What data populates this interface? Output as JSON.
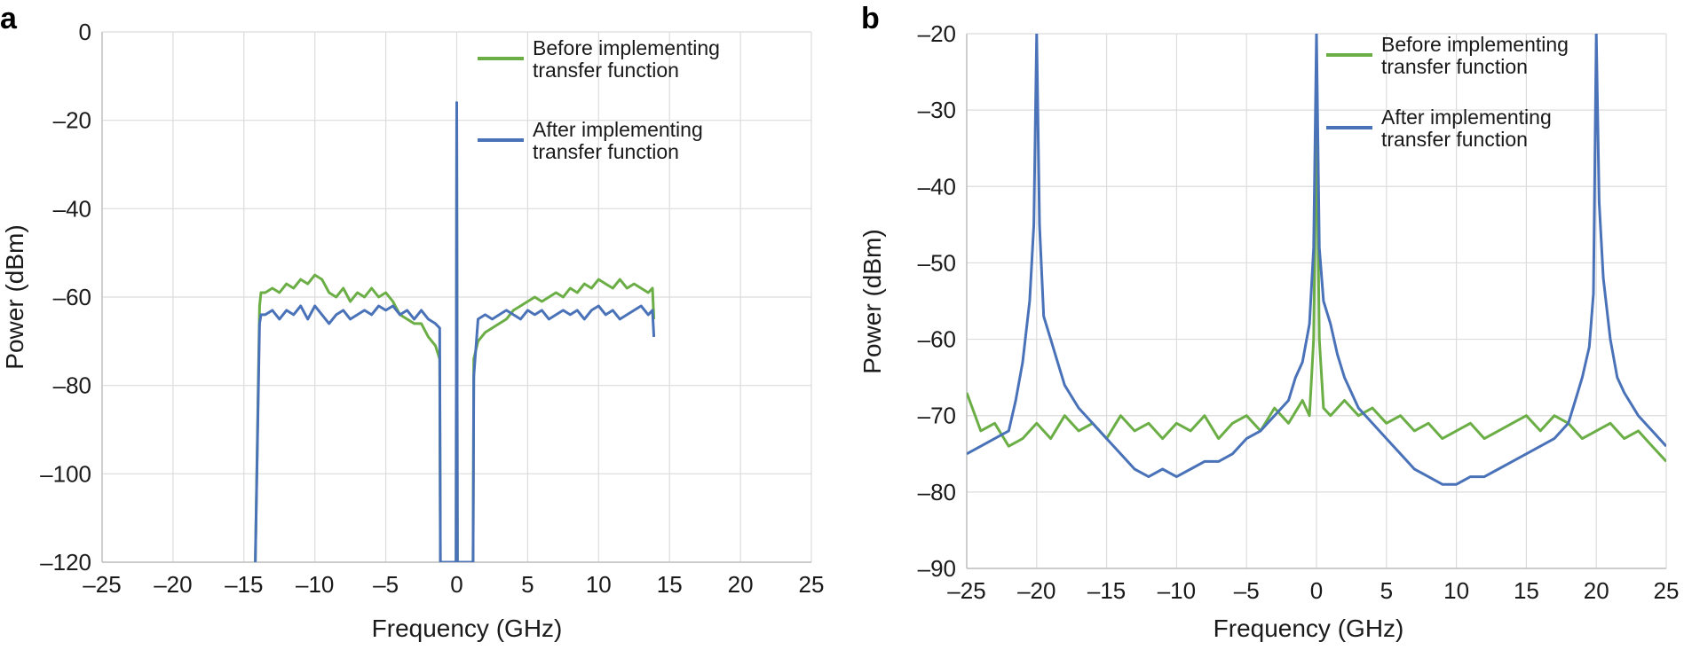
{
  "chart_data": [
    {
      "type": "line",
      "panel": "a",
      "xlabel": "Frequency (GHz)",
      "ylabel": "Power (dBm)",
      "xlim": [
        -25,
        25
      ],
      "ylim": [
        -120,
        0
      ],
      "xticks": [
        -25,
        -20,
        -15,
        -10,
        -5,
        0,
        5,
        10,
        15,
        20,
        25
      ],
      "yticks": [
        0,
        -20,
        -40,
        -60,
        -80,
        -100,
        -120
      ],
      "xtick_labels": [
        "–25",
        "–20",
        "–15",
        "–10",
        "–5",
        "0",
        "5",
        "10",
        "15",
        "20",
        "25"
      ],
      "ytick_labels": [
        "0",
        "–20",
        "–40",
        "–60",
        "–80",
        "–100",
        "–120"
      ],
      "grid": true,
      "legend_position": "top-right",
      "series": [
        {
          "name": "Before implementing transfer function",
          "color": "#6aae45",
          "x": [
            -14.2,
            -13.9,
            -13.8,
            -13.5,
            -13,
            -12.5,
            -12,
            -11.5,
            -11,
            -10.5,
            -10,
            -9.5,
            -9,
            -8.5,
            -8,
            -7.5,
            -7,
            -6.5,
            -6,
            -5.5,
            -5,
            -4.5,
            -4,
            -3.5,
            -3,
            -2.5,
            -2,
            -1.5,
            -1.2,
            -1.15,
            -0.05,
            0,
            0.05,
            1.15,
            1.2,
            1.5,
            2,
            2.5,
            3,
            3.5,
            4,
            4.5,
            5,
            5.5,
            6,
            6.5,
            7,
            7.5,
            8,
            8.5,
            9,
            9.5,
            10,
            10.5,
            11,
            11.5,
            12,
            12.5,
            13,
            13.5,
            13.8,
            13.9
          ],
          "y": [
            -120,
            -62,
            -59,
            -59,
            -58,
            -59,
            -57,
            -58,
            -56,
            -57,
            -55,
            -56,
            -59,
            -60,
            -58,
            -61,
            -59,
            -60,
            -58,
            -60,
            -59,
            -61,
            -64,
            -65,
            -66,
            -66,
            -69,
            -71,
            -74,
            -120,
            -120,
            -16,
            -120,
            -120,
            -74,
            -70,
            -68,
            -67,
            -66,
            -65,
            -63,
            -62,
            -61,
            -60,
            -61,
            -60,
            -59,
            -60,
            -58,
            -59,
            -57,
            -58,
            -56,
            -57,
            -58,
            -56,
            -58,
            -57,
            -58,
            -59,
            -58,
            -65
          ]
        },
        {
          "name": "After implementing transfer function",
          "color": "#4a72b8",
          "x": [
            -14.2,
            -13.9,
            -13.8,
            -13.5,
            -13,
            -12.5,
            -12,
            -11.5,
            -11,
            -10.5,
            -10,
            -9.5,
            -9,
            -8.5,
            -8,
            -7.5,
            -7,
            -6.5,
            -6,
            -5.5,
            -5,
            -4.5,
            -4,
            -3.5,
            -3,
            -2.5,
            -2,
            -1.5,
            -1.2,
            -1.15,
            -0.05,
            0,
            0.05,
            1.15,
            1.2,
            1.5,
            2,
            2.5,
            3,
            3.5,
            4,
            4.5,
            5,
            5.5,
            6,
            6.5,
            7,
            7.5,
            8,
            8.5,
            9,
            9.5,
            10,
            10.5,
            11,
            11.5,
            12,
            12.5,
            13,
            13.5,
            13.8,
            13.9
          ],
          "y": [
            -120,
            -66,
            -64,
            -64,
            -63,
            -65,
            -63,
            -64,
            -62,
            -65,
            -62,
            -64,
            -66,
            -64,
            -63,
            -65,
            -64,
            -63,
            -64,
            -62,
            -63,
            -62,
            -64,
            -63,
            -65,
            -63,
            -65,
            -66,
            -67,
            -120,
            -120,
            -16,
            -120,
            -120,
            -78,
            -65,
            -64,
            -65,
            -64,
            -63,
            -64,
            -65,
            -63,
            -64,
            -63,
            -65,
            -64,
            -63,
            -64,
            -63,
            -65,
            -63,
            -62,
            -64,
            -63,
            -65,
            -64,
            -63,
            -62,
            -64,
            -63,
            -69
          ]
        }
      ]
    },
    {
      "type": "line",
      "panel": "b",
      "xlabel": "Frequency (GHz)",
      "ylabel": "Power (dBm)",
      "xlim": [
        -25,
        25
      ],
      "ylim": [
        -90,
        -20
      ],
      "xticks": [
        -25,
        -20,
        -15,
        -10,
        -5,
        0,
        5,
        10,
        15,
        20,
        25
      ],
      "yticks": [
        -20,
        -30,
        -40,
        -50,
        -60,
        -70,
        -80,
        -90
      ],
      "xtick_labels": [
        "–25",
        "–20",
        "–15",
        "–10",
        "–5",
        "0",
        "5",
        "10",
        "15",
        "20",
        "25"
      ],
      "ytick_labels": [
        "–20",
        "–30",
        "–40",
        "–50",
        "–60",
        "–70",
        "–80",
        "–90"
      ],
      "grid": true,
      "legend_position": "top-right",
      "series": [
        {
          "name": "Before implementing transfer function",
          "color": "#6aae45",
          "x": [
            -25,
            -24,
            -23,
            -22,
            -21,
            -20,
            -19,
            -18,
            -17,
            -16,
            -15,
            -14,
            -13,
            -12,
            -11,
            -10,
            -9,
            -8,
            -7,
            -6,
            -5,
            -4,
            -3,
            -2,
            -1,
            -0.5,
            -0.2,
            -0.1,
            0,
            0.1,
            0.2,
            0.5,
            1,
            2,
            3,
            4,
            5,
            6,
            7,
            8,
            9,
            10,
            11,
            12,
            13,
            14,
            15,
            16,
            17,
            18,
            19,
            20,
            21,
            22,
            23,
            24,
            25
          ],
          "y": [
            -67,
            -72,
            -71,
            -74,
            -73,
            -71,
            -73,
            -70,
            -72,
            -71,
            -73,
            -70,
            -72,
            -71,
            -73,
            -71,
            -72,
            -70,
            -73,
            -71,
            -70,
            -72,
            -69,
            -71,
            -68,
            -70,
            -60,
            -45,
            -30,
            -45,
            -60,
            -69,
            -70,
            -68,
            -70,
            -69,
            -71,
            -70,
            -72,
            -71,
            -73,
            -72,
            -71,
            -73,
            -72,
            -71,
            -70,
            -72,
            -70,
            -71,
            -73,
            -72,
            -71,
            -73,
            -72,
            -74,
            -76
          ]
        },
        {
          "name": "After implementing transfer function",
          "color": "#4a72b8",
          "x": [
            -25,
            -24,
            -23,
            -22,
            -21.5,
            -21,
            -20.5,
            -20.2,
            -20,
            -19.8,
            -19.5,
            -19,
            -18.5,
            -18,
            -17,
            -16,
            -15,
            -14,
            -13,
            -12,
            -11,
            -10,
            -9,
            -8,
            -7,
            -6,
            -5,
            -4,
            -3,
            -2,
            -1.5,
            -1,
            -0.5,
            -0.2,
            0,
            0.2,
            0.5,
            1,
            1.5,
            2,
            3,
            4,
            5,
            6,
            7,
            8,
            9,
            10,
            11,
            12,
            13,
            14,
            15,
            16,
            17,
            18,
            18.5,
            19,
            19.5,
            19.8,
            20,
            20.2,
            20.5,
            21,
            21.5,
            22,
            23,
            24,
            25
          ],
          "y": [
            -75,
            -74,
            -73,
            -72,
            -68,
            -63,
            -55,
            -45,
            -20,
            -45,
            -57,
            -60,
            -63,
            -66,
            -69,
            -71,
            -73,
            -75,
            -77,
            -78,
            -77,
            -78,
            -77,
            -76,
            -76,
            -75,
            -73,
            -72,
            -70,
            -68,
            -65,
            -63,
            -58,
            -48,
            -20,
            -48,
            -55,
            -58,
            -62,
            -65,
            -69,
            -71,
            -73,
            -75,
            -77,
            -78,
            -79,
            -79,
            -78,
            -78,
            -77,
            -76,
            -75,
            -74,
            -73,
            -71,
            -68,
            -65,
            -61,
            -54,
            -20,
            -42,
            -52,
            -60,
            -65,
            -67,
            -70,
            -72,
            -74
          ]
        }
      ]
    }
  ]
}
